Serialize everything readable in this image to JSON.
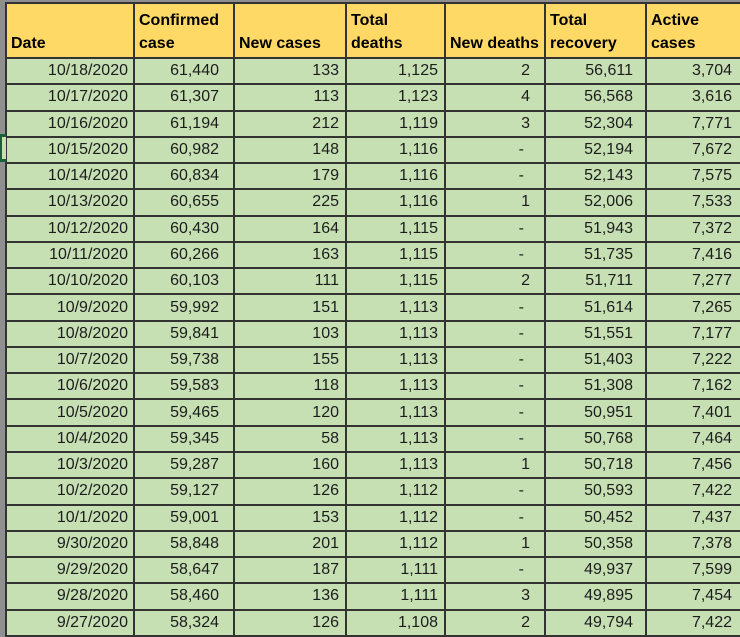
{
  "table": {
    "columns": [
      "Date",
      "Confirmed case",
      "New cases",
      "Total deaths",
      "New deaths",
      "Total recovery",
      "Active cases"
    ],
    "column_keys": [
      "date",
      "confirmed-case",
      "new-cases",
      "total-deaths",
      "new-deaths",
      "total-recovery",
      "active-cases"
    ],
    "rows": [
      [
        "10/18/2020",
        "61,440",
        "133",
        "1,125",
        "2",
        "56,611",
        "3,704"
      ],
      [
        "10/17/2020",
        "61,307",
        "113",
        "1,123",
        "4",
        "56,568",
        "3,616"
      ],
      [
        "10/16/2020",
        "61,194",
        "212",
        "1,119",
        "3",
        "52,304",
        "7,771"
      ],
      [
        "10/15/2020",
        "60,982",
        "148",
        "1,116",
        "-",
        "52,194",
        "7,672"
      ],
      [
        "10/14/2020",
        "60,834",
        "179",
        "1,116",
        "-",
        "52,143",
        "7,575"
      ],
      [
        "10/13/2020",
        "60,655",
        "225",
        "1,116",
        "1",
        "52,006",
        "7,533"
      ],
      [
        "10/12/2020",
        "60,430",
        "164",
        "1,115",
        "-",
        "51,943",
        "7,372"
      ],
      [
        "10/11/2020",
        "60,266",
        "163",
        "1,115",
        "-",
        "51,735",
        "7,416"
      ],
      [
        "10/10/2020",
        "60,103",
        "111",
        "1,115",
        "2",
        "51,711",
        "7,277"
      ],
      [
        "10/9/2020",
        "59,992",
        "151",
        "1,113",
        "-",
        "51,614",
        "7,265"
      ],
      [
        "10/8/2020",
        "59,841",
        "103",
        "1,113",
        "-",
        "51,551",
        "7,177"
      ],
      [
        "10/7/2020",
        "59,738",
        "155",
        "1,113",
        "-",
        "51,403",
        "7,222"
      ],
      [
        "10/6/2020",
        "59,583",
        "118",
        "1,113",
        "-",
        "51,308",
        "7,162"
      ],
      [
        "10/5/2020",
        "59,465",
        "120",
        "1,113",
        "-",
        "50,951",
        "7,401"
      ],
      [
        "10/4/2020",
        "59,345",
        "58",
        "1,113",
        "-",
        "50,768",
        "7,464"
      ],
      [
        "10/3/2020",
        "59,287",
        "160",
        "1,113",
        "1",
        "50,718",
        "7,456"
      ],
      [
        "10/2/2020",
        "59,127",
        "126",
        "1,112",
        "-",
        "50,593",
        "7,422"
      ],
      [
        "10/1/2020",
        "59,001",
        "153",
        "1,112",
        "-",
        "50,452",
        "7,437"
      ],
      [
        "9/30/2020",
        "58,848",
        "201",
        "1,112",
        "1",
        "50,358",
        "7,378"
      ],
      [
        "9/29/2020",
        "58,647",
        "187",
        "1,111",
        "-",
        "49,937",
        "7,599"
      ],
      [
        "9/28/2020",
        "58,460",
        "136",
        "1,111",
        "3",
        "49,895",
        "7,454"
      ],
      [
        "9/27/2020",
        "58,324",
        "126",
        "1,108",
        "2",
        "49,794",
        "7,422"
      ]
    ]
  },
  "selection": {
    "row_date": "10/15/2020"
  },
  "colors": {
    "header_bg": "#FFD966",
    "header_text": "#000000",
    "row_bg": "#C6E0B4",
    "cell_text": "#1c1c1c",
    "border_color": "#333333",
    "gutter_bg": "#8f8f8f",
    "selection_border": "#17613b"
  }
}
